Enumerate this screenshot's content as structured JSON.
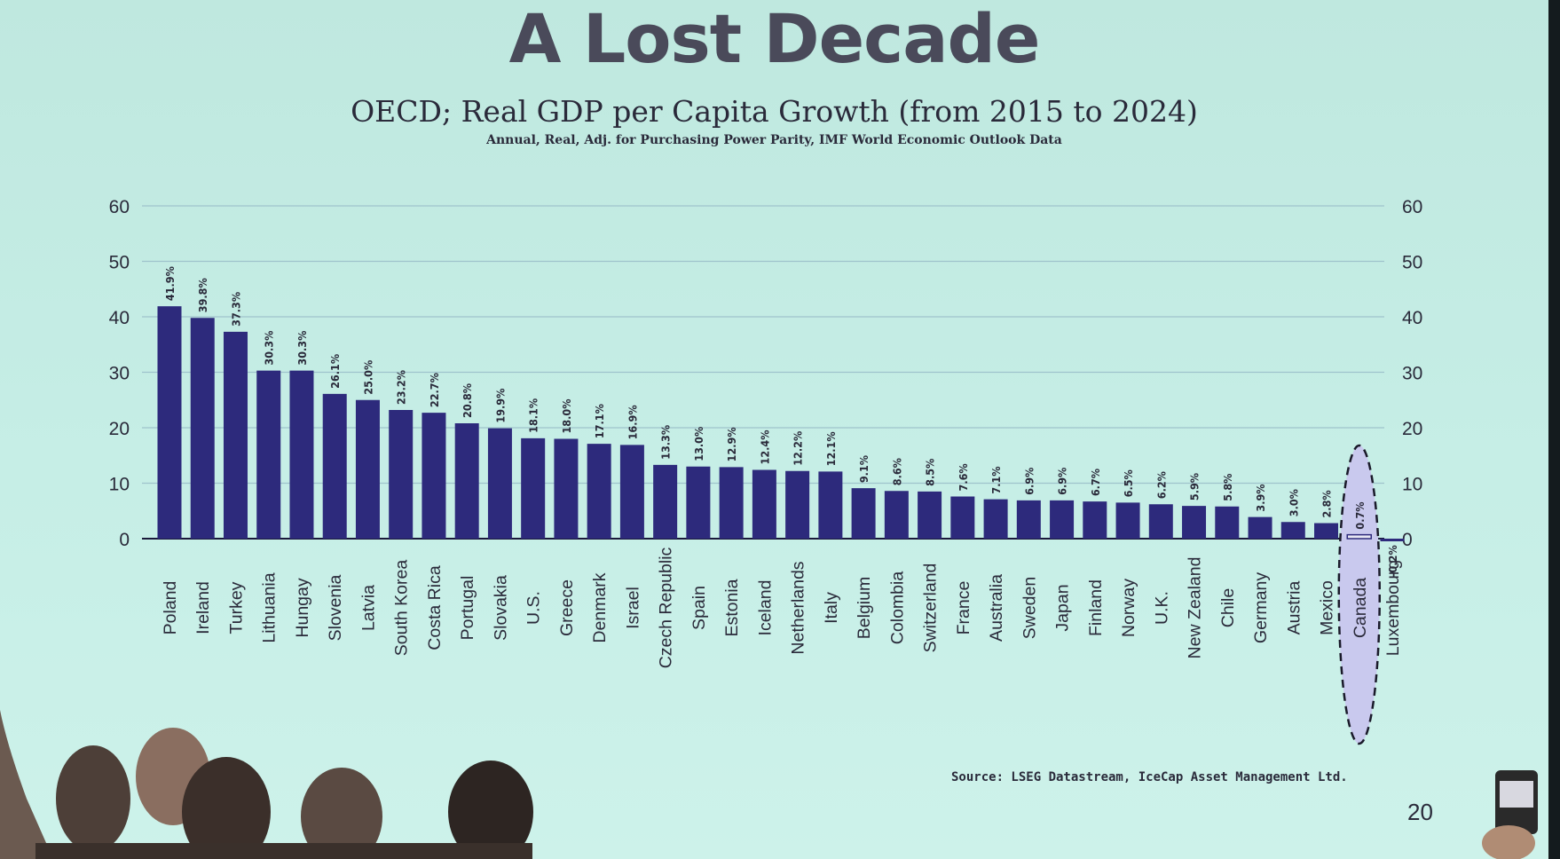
{
  "slide": {
    "title": "A Lost Decade",
    "subtitle": "OECD; Real GDP per Capita Growth (from 2015 to 2024)",
    "note": "Annual, Real, Adj. for Purchasing Power Parity, IMF World Economic Outlook Data",
    "source": "Source: LSEG Datastream, IceCap Asset Management Ltd.",
    "page_number": "20"
  },
  "colors": {
    "bar": "#2d2a7c",
    "highlight_fill": "#c9c9ee",
    "grid": "#9fc3cc",
    "text": "#2a2a3a"
  },
  "chart_data": {
    "type": "bar",
    "categories": [
      "Poland",
      "Ireland",
      "Turkey",
      "Lithuania",
      "Hungay",
      "Slovenia",
      "Latvia",
      "South Korea",
      "Costa Rica",
      "Portugal",
      "Slovakia",
      "U.S.",
      "Greece",
      "Denmark",
      "Israel",
      "Czech Republic",
      "Spain",
      "Estonia",
      "Iceland",
      "Netherlands",
      "Italy",
      "Belgium",
      "Colombia",
      "Switzerland",
      "France",
      "Australia",
      "Sweden",
      "Japan",
      "Finland",
      "Norway",
      "U.K.",
      "New Zealand",
      "Chile",
      "Germany",
      "Austria",
      "Mexico",
      "Canada",
      "Luxembourg"
    ],
    "values": [
      41.9,
      39.8,
      37.3,
      30.3,
      30.3,
      26.1,
      25.0,
      23.2,
      22.7,
      20.8,
      19.9,
      18.1,
      18.0,
      17.1,
      16.9,
      13.3,
      13.0,
      12.9,
      12.4,
      12.2,
      12.1,
      9.1,
      8.6,
      8.5,
      7.6,
      7.1,
      6.9,
      6.9,
      6.7,
      6.5,
      6.2,
      5.9,
      5.8,
      3.9,
      3.0,
      2.8,
      0.7,
      -0.2
    ],
    "data_labels": [
      "41.9%",
      "39.8%",
      "37.3%",
      "30.3%",
      "30.3%",
      "26.1%",
      "25.0%",
      "23.2%",
      "22.7%",
      "20.8%",
      "19.9%",
      "18.1%",
      "18.0%",
      "17.1%",
      "16.9%",
      "13.3%",
      "13.0%",
      "12.9%",
      "12.4%",
      "12.2%",
      "12.1%",
      "9.1%",
      "8.6%",
      "8.5%",
      "7.6%",
      "7.1%",
      "6.9%",
      "6.9%",
      "6.7%",
      "6.5%",
      "6.2%",
      "5.9%",
      "5.8%",
      "3.9%",
      "3.0%",
      "2.8%",
      "0.7%",
      "-0.2%"
    ],
    "highlighted_category": "Canada",
    "ylim": [
      0,
      60
    ],
    "y_ticks": [
      "0",
      "10",
      "20",
      "30",
      "40",
      "50",
      "60"
    ],
    "y_axis_both_sides": true,
    "grid": true,
    "legend": false
  }
}
